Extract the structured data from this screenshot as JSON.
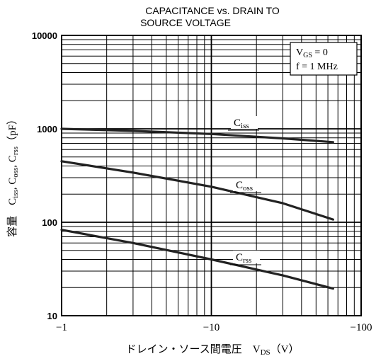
{
  "chart_data": {
    "type": "line",
    "title": "CAPACITANCE vs. DRAIN TO\nSOURCE VOLTAGE",
    "xlabel": "ドレイン・ソース間電圧　V_DS（V）",
    "ylabel": "容量　C_iss, C_oss, C_rss（pF）",
    "x_scale": "log",
    "y_scale": "log",
    "xlim": [
      -1,
      -100
    ],
    "ylim": [
      10,
      10000
    ],
    "x_ticks": [
      "−1",
      "−10",
      "−100"
    ],
    "y_ticks": [
      "10",
      "100",
      "1000",
      "10000"
    ],
    "grid": true,
    "conditions": [
      "V_GS = 0",
      "f = 1 MHz"
    ],
    "series": [
      {
        "name": "C_iss",
        "x": [
          -1,
          -3,
          -10,
          -30,
          -65
        ],
        "y": [
          1000,
          950,
          880,
          790,
          720
        ]
      },
      {
        "name": "C_oss",
        "x": [
          -1,
          -3,
          -10,
          -30,
          -65
        ],
        "y": [
          450,
          340,
          240,
          160,
          107
        ]
      },
      {
        "name": "C_rss",
        "x": [
          -1,
          -3,
          -10,
          -30,
          -65
        ],
        "y": [
          83,
          60,
          40,
          27,
          19.5
        ]
      }
    ]
  }
}
